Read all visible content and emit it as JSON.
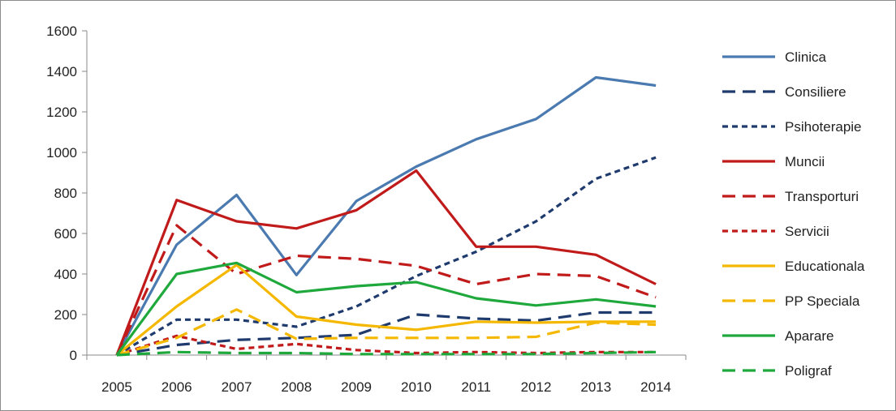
{
  "chart_data": {
    "type": "line",
    "categories": [
      "2005",
      "2006",
      "2007",
      "2008",
      "2009",
      "2010",
      "2011",
      "2012",
      "2013",
      "2014"
    ],
    "ylim": [
      0,
      1600
    ],
    "yticks": [
      0,
      200,
      400,
      600,
      800,
      1000,
      1200,
      1400,
      1600
    ],
    "grid": false,
    "legend_position": "right",
    "series": [
      {
        "name": "Clinica",
        "color": "#4a7ab0",
        "dash": "solid",
        "values": [
          0,
          545,
          790,
          395,
          760,
          930,
          1065,
          1165,
          1370,
          1330
        ]
      },
      {
        "name": "Consiliere",
        "color": "#1f3b6e",
        "dash": "long",
        "values": [
          0,
          50,
          75,
          85,
          100,
          200,
          180,
          170,
          210,
          210
        ]
      },
      {
        "name": "Psihoterapie",
        "color": "#1f3b6e",
        "dash": "short",
        "values": [
          0,
          175,
          175,
          140,
          240,
          390,
          510,
          660,
          870,
          975
        ]
      },
      {
        "name": "Muncii",
        "color": "#c01a1a",
        "dash": "solid",
        "values": [
          0,
          765,
          660,
          625,
          715,
          910,
          535,
          535,
          495,
          350
        ]
      },
      {
        "name": "Transporturi",
        "color": "#c01a1a",
        "dash": "long",
        "values": [
          0,
          640,
          400,
          490,
          475,
          440,
          350,
          400,
          390,
          285
        ]
      },
      {
        "name": "Servicii",
        "color": "#c01a1a",
        "dash": "short",
        "values": [
          0,
          95,
          30,
          55,
          25,
          10,
          15,
          10,
          15,
          15
        ]
      },
      {
        "name": "Educationala",
        "color": "#f5b800",
        "dash": "solid",
        "values": [
          0,
          240,
          445,
          190,
          150,
          125,
          165,
          160,
          165,
          165
        ]
      },
      {
        "name": "PP Speciala",
        "color": "#f5b800",
        "dash": "long",
        "values": [
          0,
          85,
          225,
          80,
          85,
          85,
          85,
          90,
          160,
          150
        ]
      },
      {
        "name": "Aparare",
        "color": "#1fa83c",
        "dash": "solid",
        "values": [
          0,
          400,
          455,
          310,
          340,
          360,
          280,
          245,
          275,
          240
        ]
      },
      {
        "name": "Poligraf",
        "color": "#1fa83c",
        "dash": "long",
        "values": [
          0,
          15,
          10,
          10,
          5,
          5,
          5,
          5,
          10,
          15
        ]
      }
    ]
  }
}
